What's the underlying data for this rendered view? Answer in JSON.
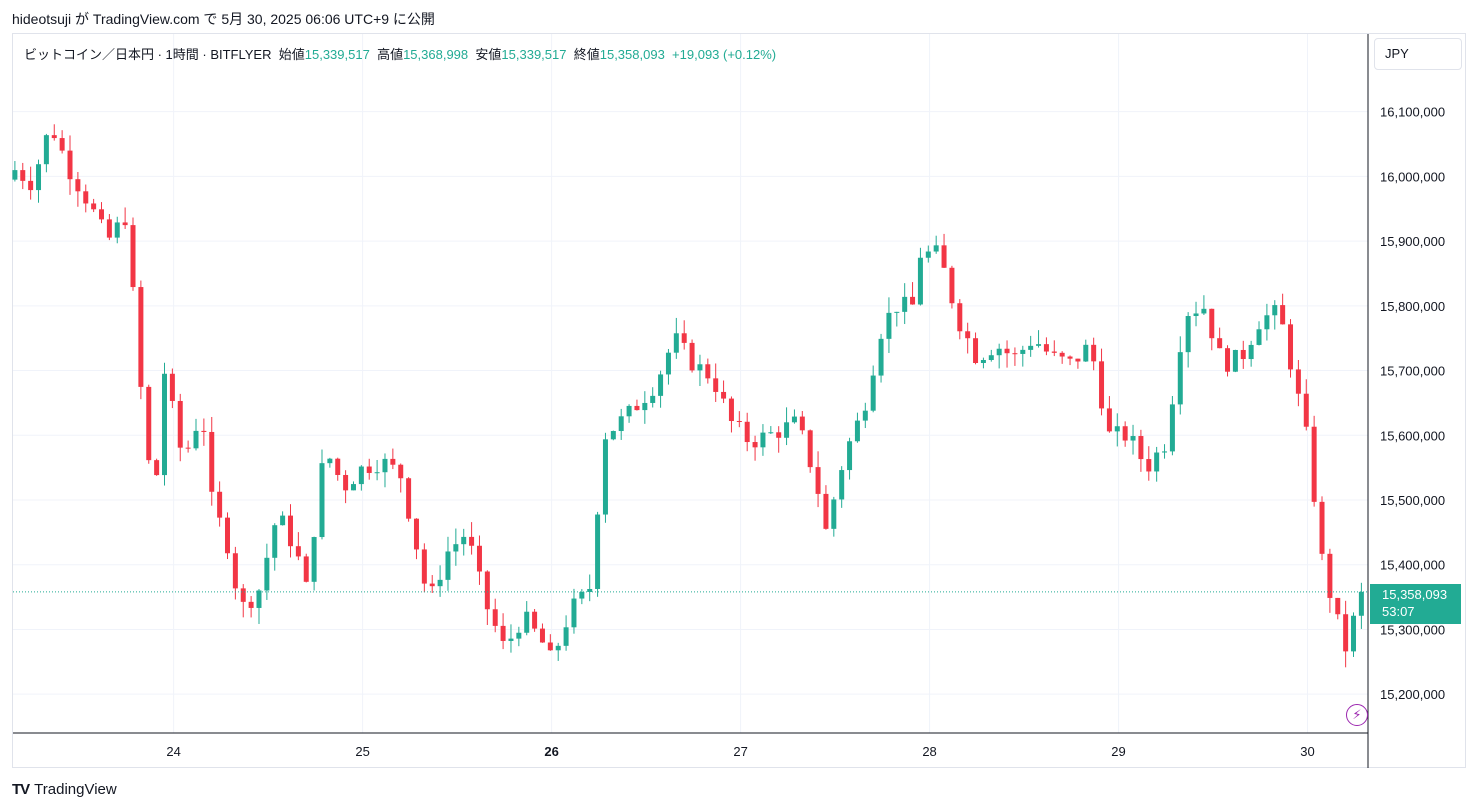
{
  "caption": "hideotsuji が TradingView.com で 5月 30, 2025 06:06 UTC+9 に公開",
  "brand": {
    "logo": "TV",
    "name": "TradingView"
  },
  "currency": "JPY",
  "legend": {
    "symbol": "ビットコイン／日本円 · 1時間 · BITFLYER",
    "open_label": "始値",
    "open": "15,339,517",
    "high_label": "高値",
    "high": "15,368,998",
    "low_label": "安値",
    "low": "15,339,517",
    "close_label": "終値",
    "close": "15,358,093",
    "change": "+19,093 (+0.12%)"
  },
  "last_price": {
    "price": "15,358,093",
    "countdown": "53:07"
  },
  "colors": {
    "up": "#22ab94",
    "down": "#f23645",
    "grid": "#f0f3fa",
    "axis": "#131722"
  },
  "icons": {
    "bolt": "lightning-icon"
  },
  "chart_data": {
    "type": "candlestick",
    "timeframe": "1h",
    "y_ticks": [
      16100000,
      16000000,
      15900000,
      15800000,
      15700000,
      15600000,
      15500000,
      15400000,
      15300000,
      15200000
    ],
    "y_tick_labels": [
      "16,100,000",
      "16,000,000",
      "15,900,000",
      "15,800,000",
      "15,700,000",
      "15,600,000",
      "15,500,000",
      "15,400,000",
      "15,300,000",
      "15,200,000"
    ],
    "ylim": [
      15140000,
      16220000
    ],
    "x_ticks": [
      {
        "label": "24",
        "day": 24
      },
      {
        "label": "25",
        "day": 25
      },
      {
        "label": "26",
        "day": 26,
        "bold": true
      },
      {
        "label": "27",
        "day": 27
      },
      {
        "label": "28",
        "day": 28
      },
      {
        "label": "29",
        "day": 29
      },
      {
        "label": "30",
        "day": 30
      }
    ],
    "x_range_days": [
      23.15,
      30.32
    ],
    "close_path": [
      [
        23.16,
        16010000
      ],
      [
        23.25,
        15990000
      ],
      [
        23.35,
        16080000
      ],
      [
        23.45,
        16010000
      ],
      [
        23.55,
        15960000
      ],
      [
        23.65,
        15900000
      ],
      [
        23.75,
        15940000
      ],
      [
        23.85,
        15590000
      ],
      [
        23.9,
        15500000
      ],
      [
        23.95,
        15700000
      ],
      [
        24.05,
        15560000
      ],
      [
        24.15,
        15640000
      ],
      [
        24.2,
        15500000
      ],
      [
        24.3,
        15420000
      ],
      [
        24.35,
        15330000
      ],
      [
        24.45,
        15360000
      ],
      [
        24.55,
        15480000
      ],
      [
        24.65,
        15420000
      ],
      [
        24.7,
        15360000
      ],
      [
        24.8,
        15580000
      ],
      [
        24.9,
        15520000
      ],
      [
        25.0,
        15550000
      ],
      [
        25.1,
        15560000
      ],
      [
        25.2,
        15540000
      ],
      [
        25.3,
        15410000
      ],
      [
        25.35,
        15340000
      ],
      [
        25.45,
        15420000
      ],
      [
        25.55,
        15450000
      ],
      [
        25.65,
        15340000
      ],
      [
        25.75,
        15270000
      ],
      [
        25.85,
        15320000
      ],
      [
        25.95,
        15280000
      ],
      [
        26.0,
        15250000
      ],
      [
        26.1,
        15330000
      ],
      [
        26.2,
        15360000
      ],
      [
        26.28,
        15600000
      ],
      [
        26.4,
        15630000
      ],
      [
        26.55,
        15680000
      ],
      [
        26.65,
        15750000
      ],
      [
        26.75,
        15710000
      ],
      [
        26.85,
        15690000
      ],
      [
        26.95,
        15620000
      ],
      [
        27.05,
        15590000
      ],
      [
        27.15,
        15600000
      ],
      [
        27.3,
        15620000
      ],
      [
        27.4,
        15530000
      ],
      [
        27.45,
        15450000
      ],
      [
        27.55,
        15570000
      ],
      [
        27.65,
        15640000
      ],
      [
        27.75,
        15770000
      ],
      [
        27.85,
        15810000
      ],
      [
        27.9,
        15780000
      ],
      [
        27.95,
        15880000
      ],
      [
        28.05,
        15880000
      ],
      [
        28.15,
        15780000
      ],
      [
        28.25,
        15720000
      ],
      [
        28.35,
        15740000
      ],
      [
        28.45,
        15720000
      ],
      [
        28.55,
        15750000
      ],
      [
        28.65,
        15720000
      ],
      [
        28.75,
        15710000
      ],
      [
        28.85,
        15740000
      ],
      [
        28.95,
        15600000
      ],
      [
        29.05,
        15600000
      ],
      [
        29.15,
        15550000
      ],
      [
        29.25,
        15590000
      ],
      [
        29.35,
        15790000
      ],
      [
        29.45,
        15800000
      ],
      [
        29.55,
        15710000
      ],
      [
        29.65,
        15720000
      ],
      [
        29.75,
        15780000
      ],
      [
        29.85,
        15790000
      ],
      [
        29.92,
        15700000
      ],
      [
        30.0,
        15590000
      ],
      [
        30.08,
        15400000
      ],
      [
        30.15,
        15320000
      ],
      [
        30.2,
        15270000
      ],
      [
        30.28,
        15350000
      ],
      [
        30.3,
        15358093
      ]
    ],
    "last_close": 15358093
  }
}
